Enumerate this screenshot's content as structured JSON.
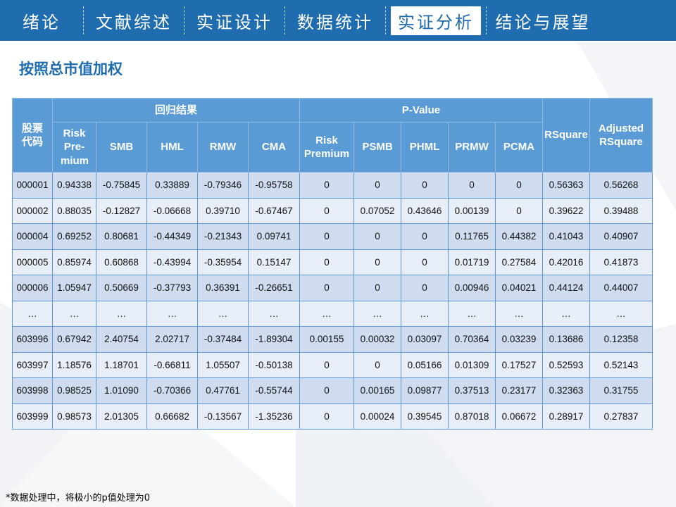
{
  "nav": {
    "items": [
      {
        "label": "绪论"
      },
      {
        "label": "文献综述"
      },
      {
        "label": "实证设计"
      },
      {
        "label": "数据统计"
      },
      {
        "label": "实证分析",
        "active": true
      },
      {
        "label": "结论与展望"
      }
    ],
    "color": "#1f6dae"
  },
  "page_title": "按照总市值加权",
  "table": {
    "group_headers": {
      "code": "股票代码",
      "regression": "回归结果",
      "pvalue": "P-Value",
      "rsquare": "RSquare",
      "adj_rsquare": "Adjusted RSquare"
    },
    "sub_headers": [
      "Risk Pre-mium",
      "SMB",
      "HML",
      "RMW",
      "CMA",
      "Risk Premium",
      "PSMB",
      "PHML",
      "PRMW",
      "PCMA"
    ],
    "rows": [
      [
        "000001",
        "0.94338",
        "-0.75845",
        "0.33889",
        "-0.79346",
        "-0.95758",
        "0",
        "0",
        "0",
        "0",
        "0",
        "0.56363",
        "0.56268"
      ],
      [
        "000002",
        "0.88035",
        "-0.12827",
        "-0.06668",
        "0.39710",
        "-0.67467",
        "0",
        "0.07052",
        "0.43646",
        "0.00139",
        "0",
        "0.39622",
        "0.39488"
      ],
      [
        "000004",
        "0.69252",
        "0.80681",
        "-0.44349",
        "-0.21343",
        "0.09741",
        "0",
        "0",
        "0",
        "0.11765",
        "0.44382",
        "0.41043",
        "0.40907"
      ],
      [
        "000005",
        "0.85974",
        "0.60868",
        "-0.43994",
        "-0.35954",
        "0.15147",
        "0",
        "0",
        "0",
        "0.01719",
        "0.27584",
        "0.42016",
        "0.41873"
      ],
      [
        "000006",
        "1.05947",
        "0.50669",
        "-0.37793",
        "0.36391",
        "-0.26651",
        "0",
        "0",
        "0",
        "0.00946",
        "0.04021",
        "0.44124",
        "0.44007"
      ],
      [
        "…",
        "…",
        "…",
        "…",
        "…",
        "…",
        "…",
        "…",
        "…",
        "…",
        "…",
        "…",
        "…"
      ],
      [
        "603996",
        "0.67942",
        "2.40754",
        "2.02717",
        "-0.37484",
        "-1.89304",
        "0.00155",
        "0.00032",
        "0.03097",
        "0.70364",
        "0.03239",
        "0.13686",
        "0.12358"
      ],
      [
        "603997",
        "1.18576",
        "1.18701",
        "-0.66811",
        "1.05507",
        "-0.50138",
        "0",
        "0",
        "0.05166",
        "0.01309",
        "0.17527",
        "0.52593",
        "0.52143"
      ],
      [
        "603998",
        "0.98525",
        "1.01090",
        "-0.70366",
        "0.47761",
        "-0.55744",
        "0",
        "0.00165",
        "0.09877",
        "0.37513",
        "0.23177",
        "0.32363",
        "0.31755"
      ],
      [
        "603999",
        "0.98573",
        "2.01305",
        "0.66682",
        "-0.13567",
        "-1.35236",
        "0",
        "0.00024",
        "0.39545",
        "0.87018",
        "0.06672",
        "0.28917",
        "0.27837"
      ]
    ]
  },
  "footnote": "*数据处理中，将极小的p值处理为0"
}
